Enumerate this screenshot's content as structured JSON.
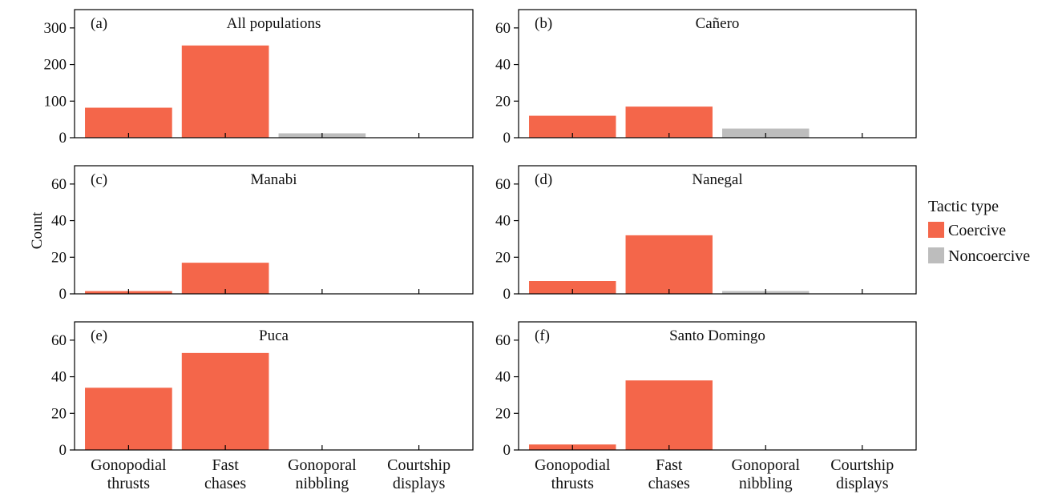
{
  "ylabel": "Count",
  "legend": {
    "title": "Tactic type",
    "items": [
      {
        "label": "Coercive",
        "color": "#f4664a"
      },
      {
        "label": "Noncoercive",
        "color": "#bdbdbd"
      }
    ]
  },
  "categories": [
    [
      "Gonopodial",
      "thrusts"
    ],
    [
      "Fast",
      "chases"
    ],
    [
      "Gonoporal",
      "nibbling"
    ],
    [
      "Courtship",
      "displays"
    ]
  ],
  "chart_data": [
    {
      "type": "bar",
      "letter": "(a)",
      "title": "All populations",
      "categories": [
        "Gonopodial thrusts",
        "Fast chases",
        "Gonoporal nibbling",
        "Courtship displays"
      ],
      "values": [
        82,
        252,
        12,
        0
      ],
      "tactic_type": [
        "Coercive",
        "Coercive",
        "Noncoercive",
        "Noncoercive"
      ],
      "ylim": [
        0,
        350
      ],
      "yticks": [
        0,
        100,
        200,
        300
      ]
    },
    {
      "type": "bar",
      "letter": "(b)",
      "title": "Cañero",
      "categories": [
        "Gonopodial thrusts",
        "Fast chases",
        "Gonoporal nibbling",
        "Courtship displays"
      ],
      "values": [
        12,
        17,
        5,
        0
      ],
      "tactic_type": [
        "Coercive",
        "Coercive",
        "Noncoercive",
        "Noncoercive"
      ],
      "ylim": [
        0,
        70
      ],
      "yticks": [
        0,
        20,
        40,
        60
      ]
    },
    {
      "type": "bar",
      "letter": "(c)",
      "title": "Manabi",
      "categories": [
        "Gonopodial thrusts",
        "Fast chases",
        "Gonoporal nibbling",
        "Courtship displays"
      ],
      "values": [
        1.5,
        17,
        0,
        0
      ],
      "tactic_type": [
        "Coercive",
        "Coercive",
        "Noncoercive",
        "Noncoercive"
      ],
      "ylim": [
        0,
        70
      ],
      "yticks": [
        0,
        20,
        40,
        60
      ]
    },
    {
      "type": "bar",
      "letter": "(d)",
      "title": "Nanegal",
      "categories": [
        "Gonopodial thrusts",
        "Fast chases",
        "Gonoporal nibbling",
        "Courtship displays"
      ],
      "values": [
        7,
        32,
        1.5,
        0
      ],
      "tactic_type": [
        "Coercive",
        "Coercive",
        "Noncoercive",
        "Noncoercive"
      ],
      "ylim": [
        0,
        70
      ],
      "yticks": [
        0,
        20,
        40,
        60
      ]
    },
    {
      "type": "bar",
      "letter": "(e)",
      "title": "Puca",
      "categories": [
        "Gonopodial thrusts",
        "Fast chases",
        "Gonoporal nibbling",
        "Courtship displays"
      ],
      "values": [
        34,
        53,
        0,
        0
      ],
      "tactic_type": [
        "Coercive",
        "Coercive",
        "Noncoercive",
        "Noncoercive"
      ],
      "ylim": [
        0,
        70
      ],
      "yticks": [
        0,
        20,
        40,
        60
      ]
    },
    {
      "type": "bar",
      "letter": "(f)",
      "title": "Santo Domingo",
      "categories": [
        "Gonopodial thrusts",
        "Fast chases",
        "Gonoporal nibbling",
        "Courtship displays"
      ],
      "values": [
        3,
        38,
        0,
        0
      ],
      "tactic_type": [
        "Coercive",
        "Coercive",
        "Noncoercive",
        "Noncoercive"
      ],
      "ylim": [
        0,
        70
      ],
      "yticks": [
        0,
        20,
        40,
        60
      ]
    }
  ]
}
